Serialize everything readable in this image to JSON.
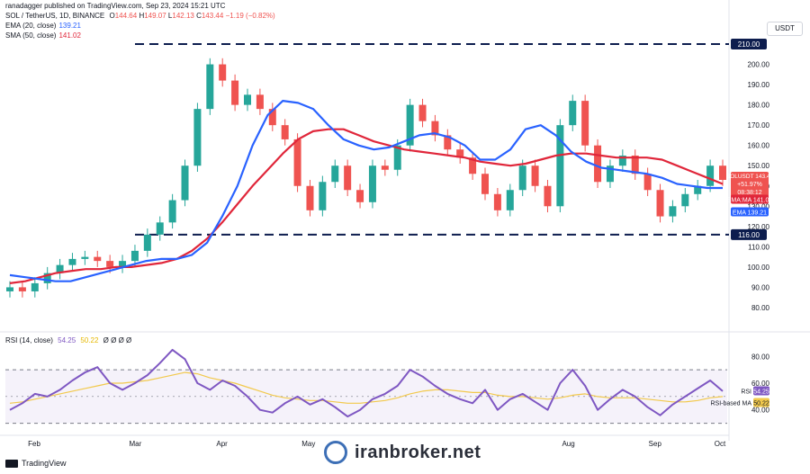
{
  "header": {
    "published": "ranadagger published on TradingView.com, Sep 23, 2024 15:21 UTC"
  },
  "symbol": {
    "title": "SOL / TetherUS, 1D, BINANCE",
    "o_label": "O",
    "o": "144.64",
    "h_label": "H",
    "h": "149.07",
    "l_label": "L",
    "l": "142.13",
    "c_label": "C",
    "c": "143.44",
    "change": "−1.19 (−0.82%)"
  },
  "indicators": {
    "ema_label": "EMA (20, close)",
    "ema_value": "139.21",
    "sma_label": "SMA (50, close)",
    "sma_value": "141.02",
    "rsi_label": "RSI (14, close)",
    "rsi_value": "54.25",
    "rsi_ma_value": "50.22",
    "rsi_extra": "Ø Ø Ø Ø"
  },
  "currency": "USDT",
  "tags": {
    "price_symbol": "SOLUSDT",
    "price": "143.44",
    "pct": "+51.97%",
    "countdown": "08:38:12",
    "sma_tag": "SMA:MA",
    "sma_val": "141.02",
    "ema_tag": "EMA",
    "ema_val": "139.21",
    "level_top": "210.00",
    "level_bottom": "116.00",
    "rsi_tag": "RSI",
    "rsi_val": "54.25",
    "rsi_ma_tag": "RSI-based MA",
    "rsi_ma_val": "50.22"
  },
  "footer": {
    "tradingview": "TradingView",
    "watermark": "iranbroker.net"
  },
  "colors": {
    "up": "#26a69a",
    "down": "#ef5350",
    "ema": "#2962ff",
    "sma": "#e0263a",
    "rsi": "#7e57c2",
    "rsi_ma": "#f2c94c",
    "level": "#0d1d4e"
  },
  "chart_data": [
    {
      "type": "candlestick",
      "title": "SOL / TetherUS, 1D, BINANCE",
      "x_ticks": [
        "Feb",
        "Mar",
        "Apr",
        "May",
        "Aug",
        "Sep",
        "Oct"
      ],
      "y_ticks": [
        80,
        90,
        100,
        110,
        120,
        130,
        140,
        150,
        160,
        170,
        180,
        190,
        200
      ],
      "ylim": [
        72,
        214
      ],
      "horizontal_levels": [
        210,
        116
      ],
      "series": [
        {
          "name": "EMA (20, close)",
          "type": "line",
          "last": 139.21,
          "values": [
            96,
            95,
            94,
            93,
            93,
            95,
            97,
            99,
            101,
            103,
            104,
            104,
            106,
            112,
            125,
            140,
            160,
            175,
            182,
            181,
            178,
            170,
            163,
            160,
            158,
            159,
            162,
            165,
            166,
            164,
            160,
            153,
            153,
            158,
            168,
            170,
            165,
            157,
            152,
            149,
            148,
            147,
            146,
            144,
            141,
            140,
            139,
            139
          ]
        },
        {
          "name": "SMA (50, close)",
          "type": "line",
          "last": 141.02,
          "values": [
            92,
            93,
            95,
            97,
            98,
            99,
            99,
            100,
            100,
            101,
            102,
            104,
            108,
            114,
            122,
            131,
            140,
            148,
            156,
            163,
            167,
            168,
            168,
            165,
            162,
            160,
            158,
            157,
            156,
            155,
            154,
            152,
            151,
            150,
            151,
            153,
            155,
            156,
            156,
            155,
            154,
            154,
            154,
            153,
            150,
            147,
            144,
            141
          ]
        },
        {
          "name": "Price (close)",
          "type": "line",
          "last": 143.44,
          "values": [
            90,
            88,
            92,
            97,
            101,
            104,
            105,
            103,
            100,
            103,
            108,
            116,
            122,
            133,
            150,
            178,
            200,
            192,
            180,
            185,
            178,
            170,
            163,
            140,
            128,
            142,
            150,
            138,
            132,
            150,
            148,
            160,
            180,
            172,
            165,
            158,
            154,
            146,
            136,
            128,
            138,
            150,
            140,
            130,
            170,
            182,
            160,
            142,
            150,
            155,
            146,
            138,
            125,
            130,
            136,
            140,
            150,
            143
          ]
        }
      ]
    },
    {
      "type": "line",
      "title": "RSI (14, close)",
      "y_ticks": [
        40,
        60,
        80
      ],
      "ylim": [
        25,
        95
      ],
      "bands": [
        30,
        70
      ],
      "series": [
        {
          "name": "RSI",
          "last": 54.25,
          "values": [
            40,
            45,
            52,
            50,
            55,
            62,
            68,
            72,
            60,
            55,
            60,
            66,
            75,
            85,
            78,
            60,
            55,
            62,
            58,
            50,
            40,
            38,
            45,
            50,
            44,
            48,
            42,
            35,
            40,
            48,
            52,
            58,
            70,
            65,
            58,
            52,
            48,
            45,
            55,
            40,
            48,
            52,
            46,
            40,
            60,
            70,
            58,
            40,
            48,
            55,
            50,
            42,
            36,
            44,
            50,
            56,
            62,
            54
          ]
        },
        {
          "name": "RSI-based MA",
          "last": 50.22,
          "values": [
            45,
            46,
            48,
            50,
            52,
            54,
            56,
            58,
            60,
            60,
            61,
            62,
            64,
            66,
            68,
            67,
            64,
            62,
            60,
            57,
            54,
            51,
            49,
            48,
            47,
            47,
            46,
            45,
            45,
            46,
            47,
            49,
            52,
            54,
            55,
            55,
            54,
            53,
            53,
            51,
            50,
            50,
            49,
            48,
            49,
            51,
            52,
            50,
            49,
            49,
            49,
            48,
            47,
            46,
            46,
            47,
            49,
            50
          ]
        }
      ]
    }
  ]
}
